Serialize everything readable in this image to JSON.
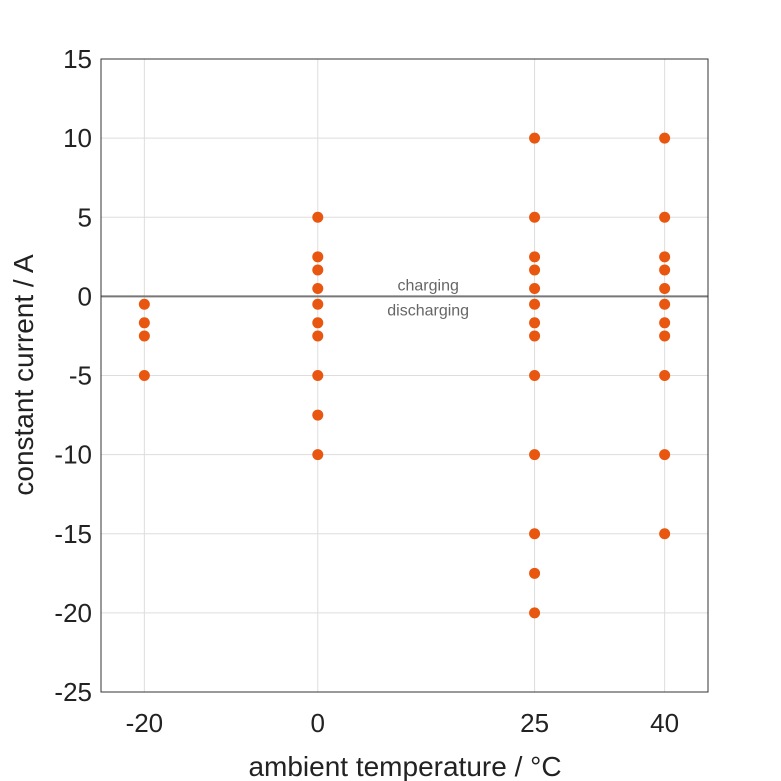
{
  "chart_data": {
    "type": "scatter",
    "xlabel": "ambient temperature / °C",
    "ylabel": "constant current / A",
    "x_ticks": [
      -20,
      0,
      25,
      40
    ],
    "x_tick_labels": [
      "-20",
      "0",
      "25",
      "40"
    ],
    "y_ticks": [
      15,
      10,
      5,
      0,
      -5,
      -10,
      -15,
      -20,
      -25
    ],
    "y_tick_labels": [
      "15",
      "10",
      "5",
      "0",
      "-5",
      "-10",
      "-15",
      "-20",
      "-25"
    ],
    "xlim": [
      -25,
      45
    ],
    "ylim": [
      -25,
      15
    ],
    "grid": true,
    "reference_line": {
      "y": 0,
      "color": "#777777"
    },
    "annotations": {
      "above": "charging",
      "below": "discharging"
    },
    "point_color": "#e8560f",
    "points": [
      {
        "x": -20,
        "y": -0.5
      },
      {
        "x": -20,
        "y": -1.67
      },
      {
        "x": -20,
        "y": -2.5
      },
      {
        "x": -20,
        "y": -5
      },
      {
        "x": 0,
        "y": 5
      },
      {
        "x": 0,
        "y": 2.5
      },
      {
        "x": 0,
        "y": 1.67
      },
      {
        "x": 0,
        "y": 0.5
      },
      {
        "x": 0,
        "y": -0.5
      },
      {
        "x": 0,
        "y": -1.67
      },
      {
        "x": 0,
        "y": -2.5
      },
      {
        "x": 0,
        "y": -5
      },
      {
        "x": 0,
        "y": -7.5
      },
      {
        "x": 0,
        "y": -10
      },
      {
        "x": 25,
        "y": 10
      },
      {
        "x": 25,
        "y": 5
      },
      {
        "x": 25,
        "y": 2.5
      },
      {
        "x": 25,
        "y": 1.67
      },
      {
        "x": 25,
        "y": 0.5
      },
      {
        "x": 25,
        "y": -0.5
      },
      {
        "x": 25,
        "y": -1.67
      },
      {
        "x": 25,
        "y": -2.5
      },
      {
        "x": 25,
        "y": -5
      },
      {
        "x": 25,
        "y": -10
      },
      {
        "x": 25,
        "y": -15
      },
      {
        "x": 25,
        "y": -17.5
      },
      {
        "x": 25,
        "y": -20
      },
      {
        "x": 40,
        "y": 10
      },
      {
        "x": 40,
        "y": 5
      },
      {
        "x": 40,
        "y": 2.5
      },
      {
        "x": 40,
        "y": 1.67
      },
      {
        "x": 40,
        "y": 0.5
      },
      {
        "x": 40,
        "y": -0.5
      },
      {
        "x": 40,
        "y": -1.67
      },
      {
        "x": 40,
        "y": -2.5
      },
      {
        "x": 40,
        "y": -5
      },
      {
        "x": 40,
        "y": -10
      },
      {
        "x": 40,
        "y": -15
      }
    ]
  }
}
